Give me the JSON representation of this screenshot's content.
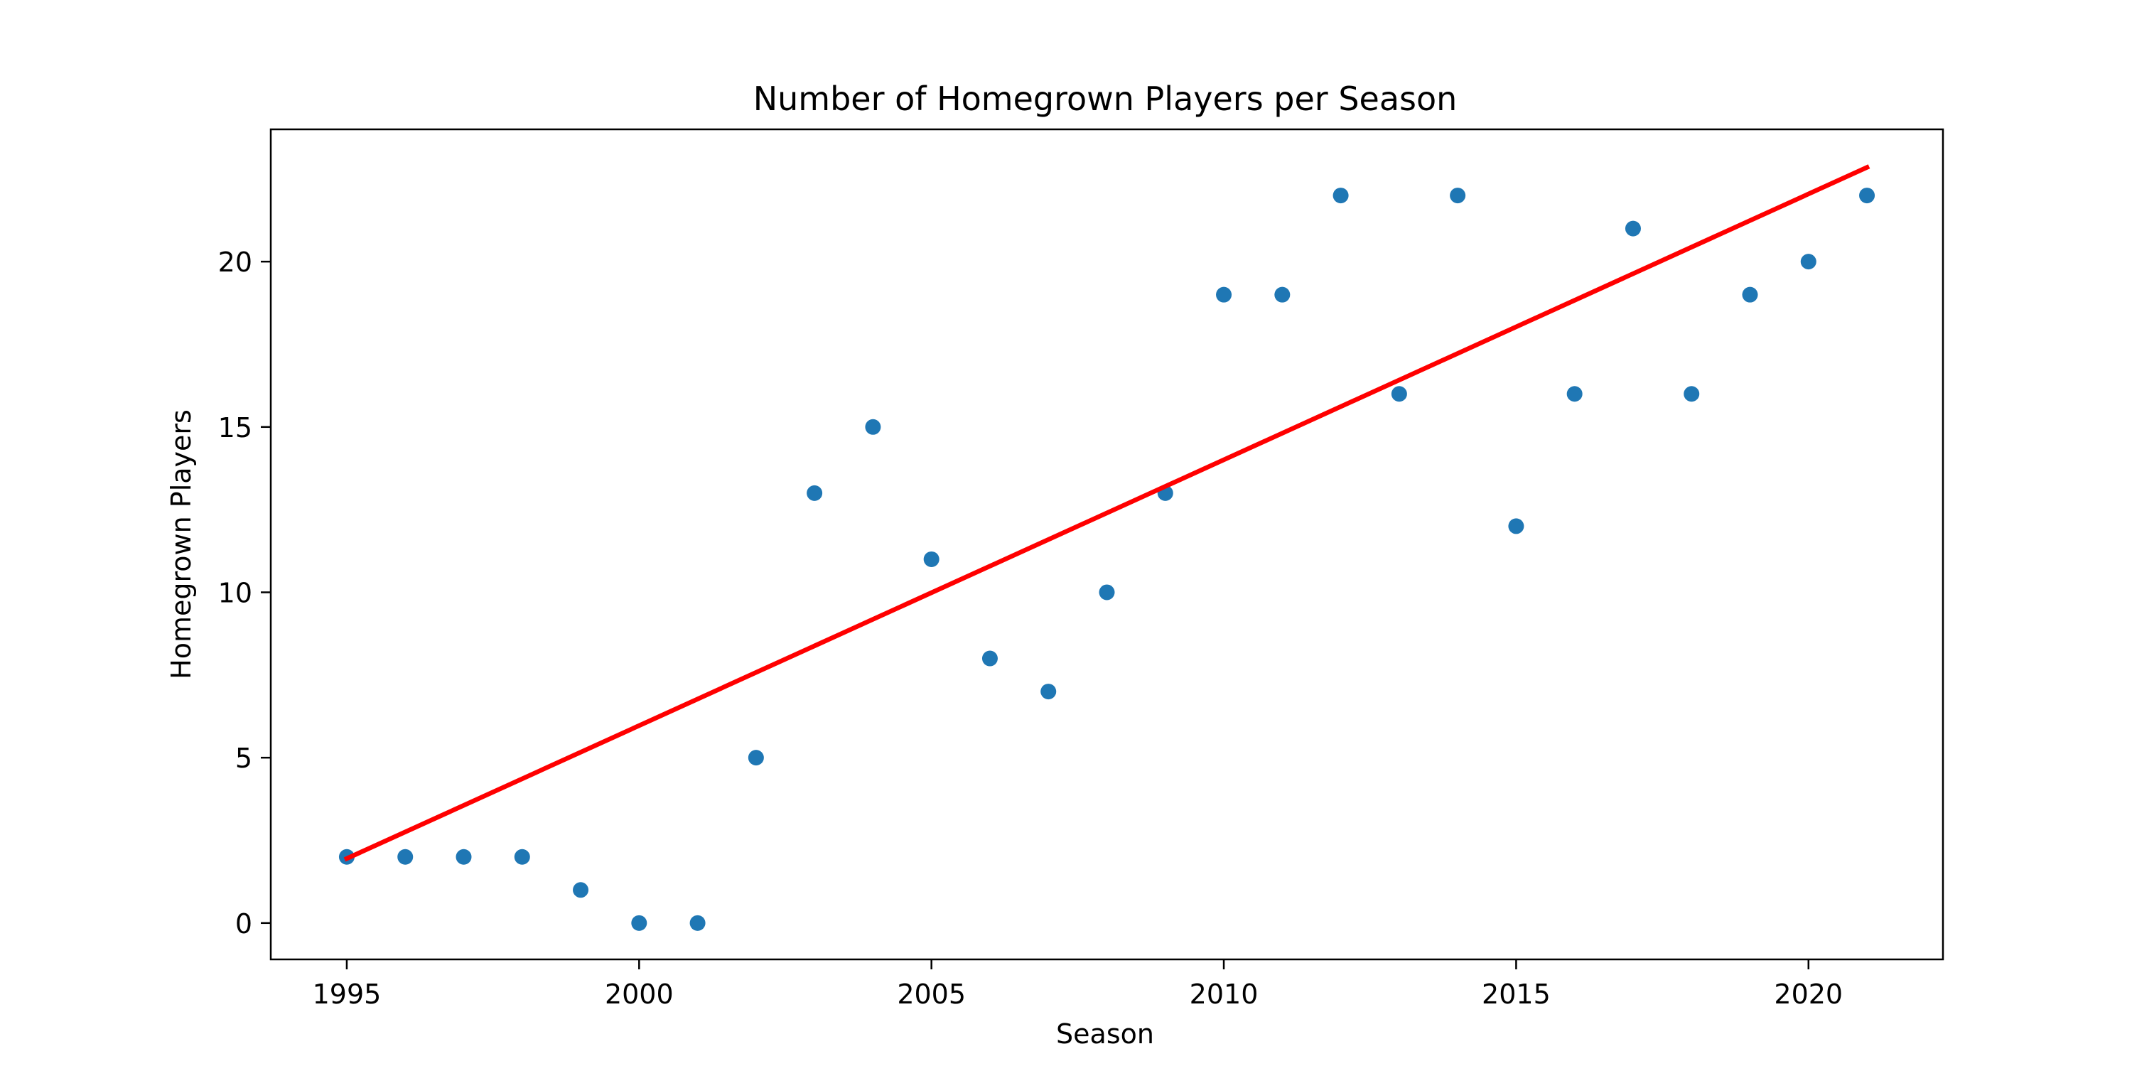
{
  "chart_data": {
    "type": "scatter",
    "title": "Number of Homegrown Players per Season",
    "xlabel": "Season",
    "ylabel": "Homegrown Players",
    "xlim": [
      1993.7,
      2022.3
    ],
    "ylim": [
      -1.1,
      24.0
    ],
    "xticks": [
      1995,
      2000,
      2005,
      2010,
      2015,
      2020
    ],
    "yticks": [
      0,
      5,
      10,
      15,
      20
    ],
    "grid": false,
    "legend": "none",
    "colors": {
      "points": "#1f77b4",
      "trend": "#ff0000",
      "axes": "#000000"
    },
    "series": [
      {
        "kind": "scatter",
        "x": [
          1995,
          1996,
          1997,
          1998,
          1999,
          2000,
          2001,
          2002,
          2003,
          2004,
          2005,
          2006,
          2007,
          2008,
          2009,
          2010,
          2011,
          2012,
          2013,
          2014,
          2015,
          2016,
          2017,
          2018,
          2019,
          2020,
          2021
        ],
        "y": [
          2,
          2,
          2,
          2,
          1,
          0,
          0,
          5,
          13,
          15,
          11,
          8,
          7,
          10,
          13,
          19,
          19,
          22,
          16,
          22,
          12,
          16,
          21,
          16,
          19,
          20,
          22
        ]
      },
      {
        "kind": "line",
        "x": [
          1995,
          2021
        ],
        "y": [
          1.95,
          22.85
        ]
      }
    ]
  }
}
